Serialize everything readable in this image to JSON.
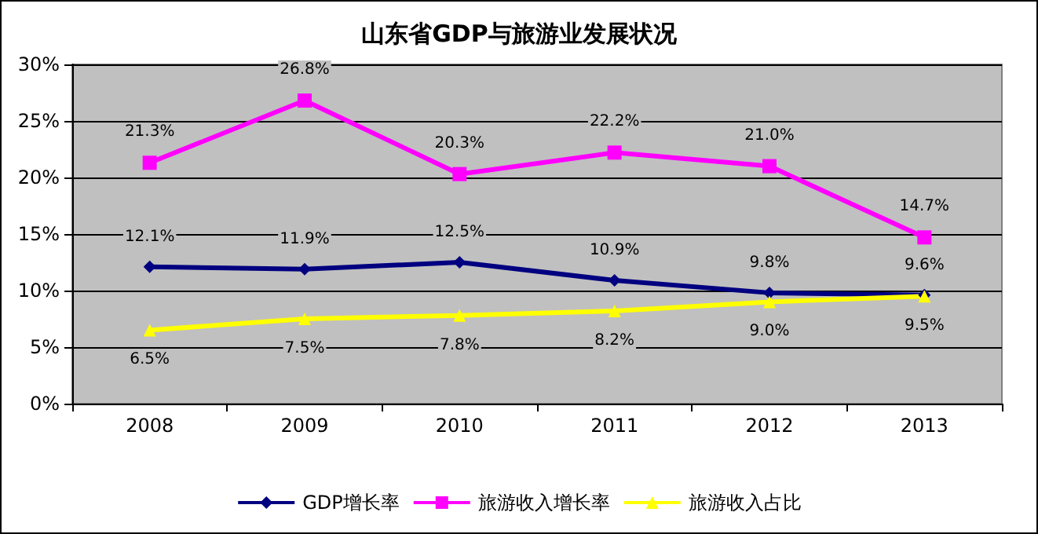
{
  "chart_data": {
    "type": "line",
    "title": "山东省GDP与旅游业发展状况",
    "categories": [
      "2008",
      "2009",
      "2010",
      "2011",
      "2012",
      "2013"
    ],
    "series": [
      {
        "name": "GDP增长率",
        "color": "#000080",
        "marker": "diamond",
        "values": [
          12.1,
          11.9,
          12.5,
          10.9,
          9.8,
          9.6
        ],
        "value_labels": [
          "12.1%",
          "11.9%",
          "12.5%",
          "10.9%",
          "9.8%",
          "9.6%"
        ]
      },
      {
        "name": "旅游收入增长率",
        "color": "#ff00ff",
        "marker": "square",
        "values": [
          21.3,
          26.8,
          20.3,
          22.2,
          21.0,
          14.7
        ],
        "value_labels": [
          "21.3%",
          "26.8%",
          "20.3%",
          "22.2%",
          "21.0%",
          "14.7%"
        ]
      },
      {
        "name": "旅游收入占比",
        "color": "#ffff00",
        "marker": "triangle",
        "values": [
          6.5,
          7.5,
          7.8,
          8.2,
          9.0,
          9.5
        ],
        "value_labels": [
          "6.5%",
          "7.5%",
          "7.8%",
          "8.2%",
          "9.0%",
          "9.5%"
        ]
      }
    ],
    "ylim": [
      0,
      30
    ],
    "yticks": [
      {
        "value": 0,
        "label": "0%"
      },
      {
        "value": 5,
        "label": "5%"
      },
      {
        "value": 10,
        "label": "10%"
      },
      {
        "value": 15,
        "label": "15%"
      },
      {
        "value": 20,
        "label": "20%"
      },
      {
        "value": 25,
        "label": "25%"
      },
      {
        "value": 30,
        "label": "30%"
      }
    ],
    "grid": "y",
    "legend": "bottom"
  }
}
